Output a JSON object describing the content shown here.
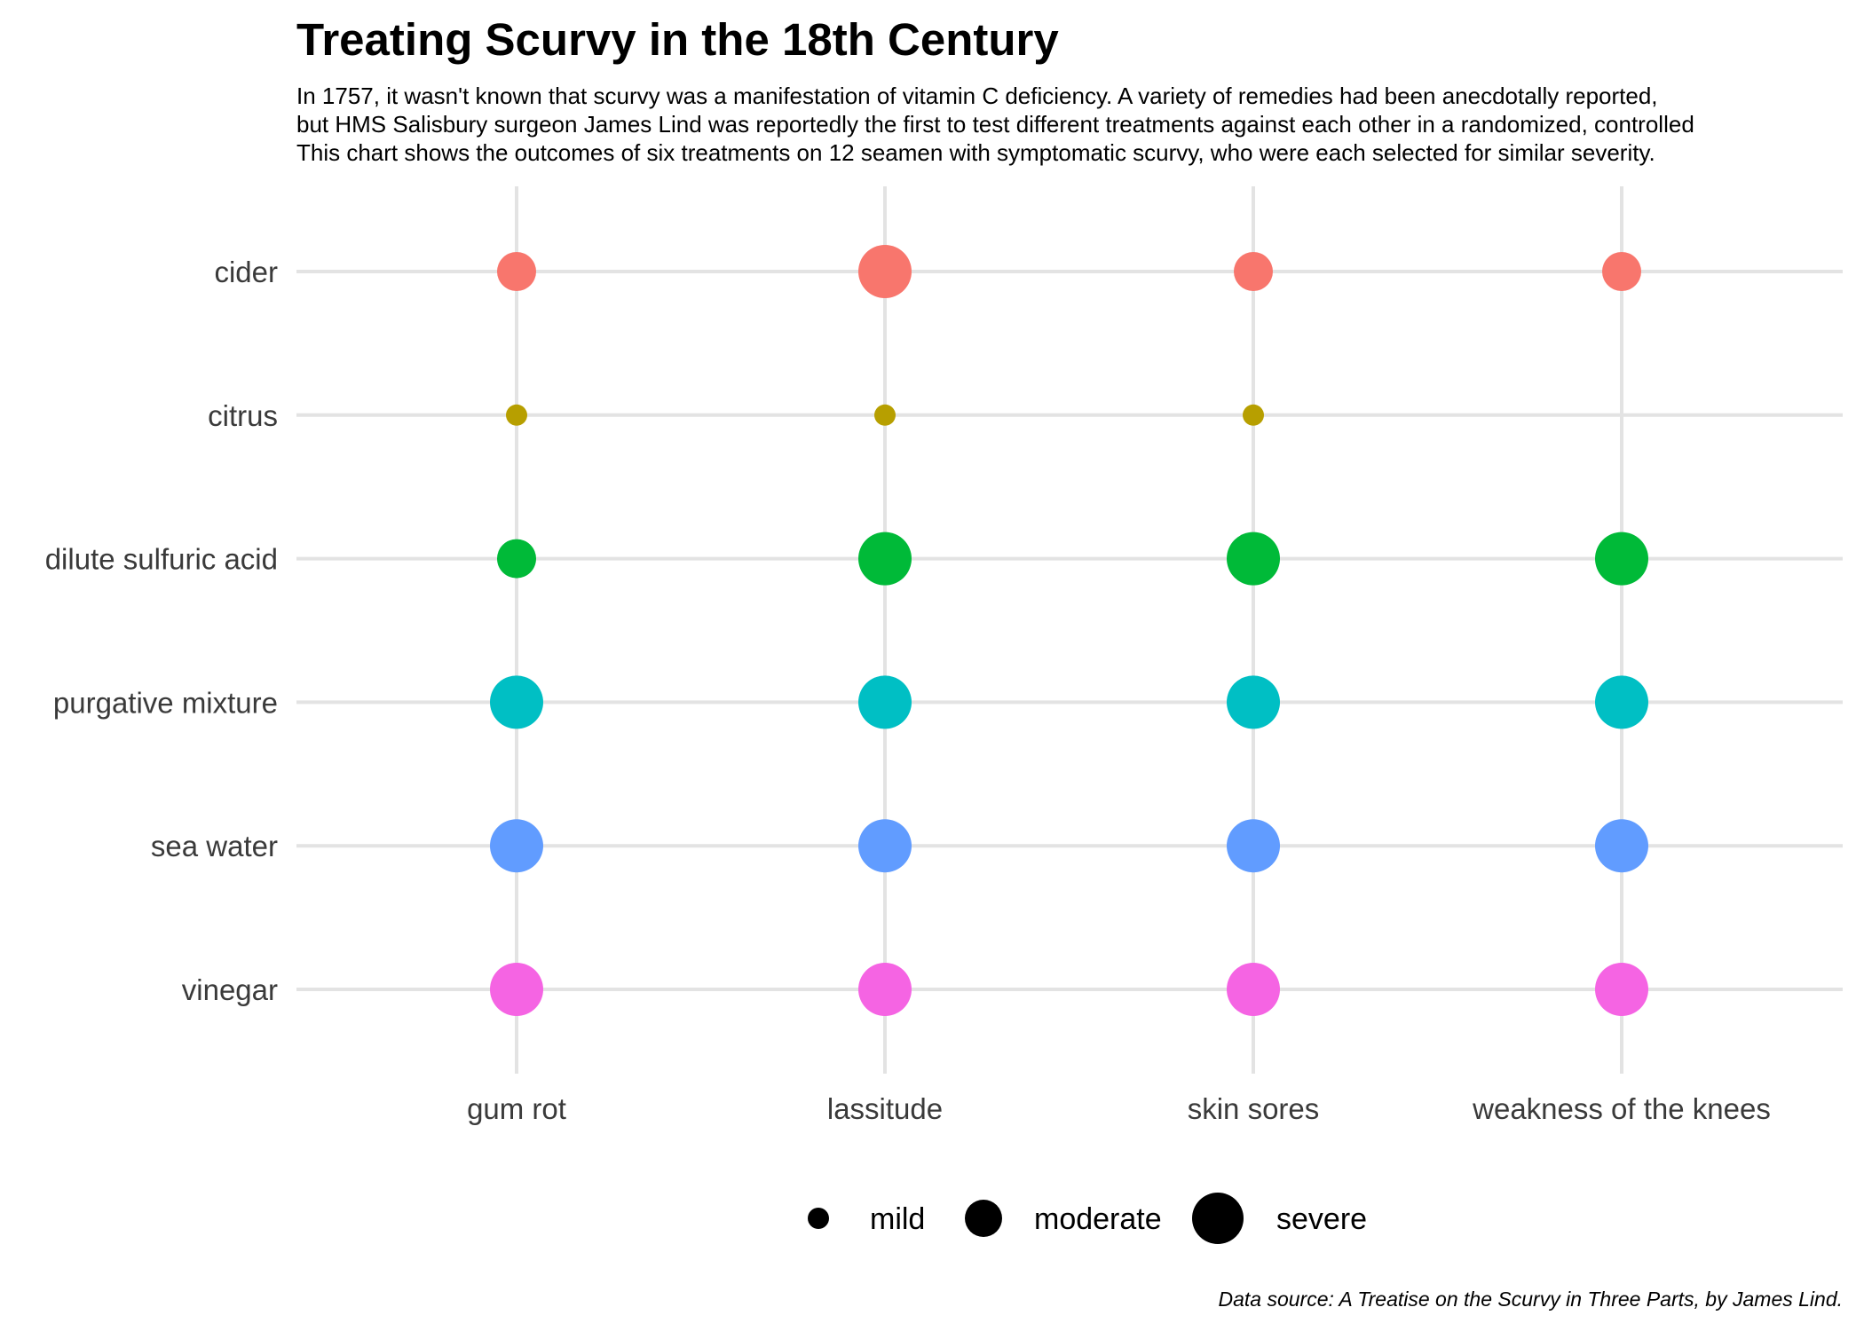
{
  "chart_data": {
    "type": "scatter",
    "title": "Treating Scurvy in the 18th Century",
    "subtitle_lines": [
      "In 1757, it wasn't known that scurvy was a manifestation of vitamin C deficiency. A variety of remedies had been anecdotally reported,",
      "but HMS Salisbury surgeon James Lind was reportedly the first to test different treatments against each other in a randomized, controlled",
      "This chart shows the outcomes of six treatments on 12 seamen with symptomatic scurvy, who were each selected for similar severity."
    ],
    "caption": "Data source: A Treatise on the Scurvy in Three Parts, by James Lind.",
    "x_categories": [
      "gum rot",
      "lassitude",
      "skin sores",
      "weakness of the knees"
    ],
    "y_categories": [
      "cider",
      "citrus",
      "dilute sulfuric acid",
      "purgative mixture",
      "sea water",
      "vinegar"
    ],
    "size_levels": [
      "none",
      "mild",
      "moderate",
      "severe"
    ],
    "series": [
      {
        "treatment": "cider",
        "color": "#F8766D",
        "severity": [
          "moderate",
          "severe",
          "moderate",
          "moderate"
        ]
      },
      {
        "treatment": "citrus",
        "color": "#B79F00",
        "severity": [
          "mild",
          "mild",
          "mild",
          "none"
        ]
      },
      {
        "treatment": "dilute sulfuric acid",
        "color": "#00BA38",
        "severity": [
          "moderate",
          "severe",
          "severe",
          "severe"
        ]
      },
      {
        "treatment": "purgative mixture",
        "color": "#00BFC4",
        "severity": [
          "severe",
          "severe",
          "severe",
          "severe"
        ]
      },
      {
        "treatment": "sea water",
        "color": "#619CFF",
        "severity": [
          "severe",
          "severe",
          "severe",
          "severe"
        ]
      },
      {
        "treatment": "vinegar",
        "color": "#F564E3",
        "severity": [
          "severe",
          "severe",
          "severe",
          "severe"
        ]
      }
    ],
    "legend": {
      "position": "bottom",
      "items": [
        "mild",
        "moderate",
        "severe"
      ]
    },
    "grid": true
  }
}
